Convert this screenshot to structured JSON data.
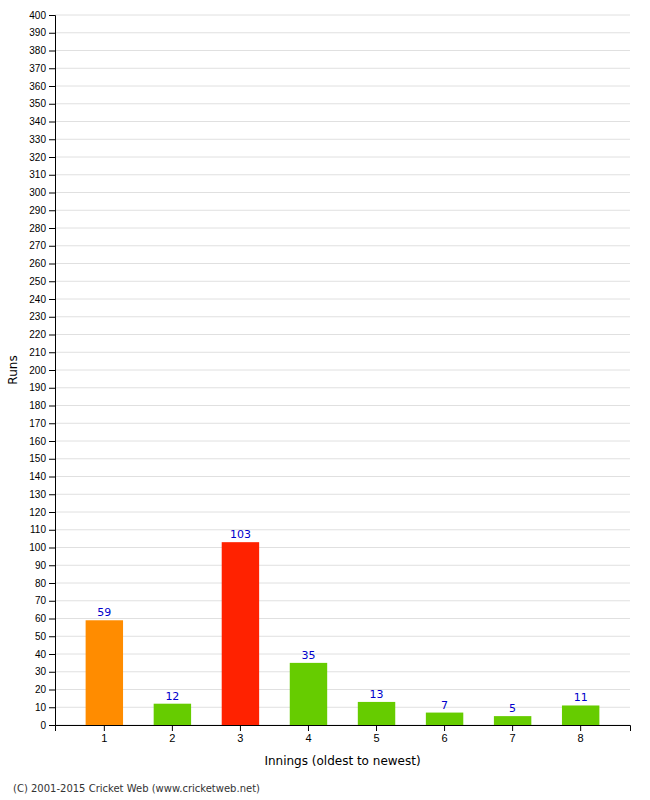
{
  "chart_data": {
    "type": "bar",
    "xlabel": "Innings (oldest to newest)",
    "ylabel": "Runs",
    "categories": [
      "1",
      "2",
      "3",
      "4",
      "5",
      "6",
      "7",
      "8"
    ],
    "values": [
      59,
      12,
      103,
      35,
      13,
      7,
      5,
      11
    ],
    "colors": [
      "#ff8c00",
      "#66cc00",
      "#ff2200",
      "#66cc00",
      "#66cc00",
      "#66cc00",
      "#66cc00",
      "#66cc00"
    ],
    "ylim": [
      0,
      400
    ],
    "yticks": [
      0,
      10,
      20,
      30,
      40,
      50,
      60,
      70,
      80,
      90,
      100,
      110,
      120,
      130,
      140,
      150,
      160,
      170,
      180,
      190,
      200,
      210,
      220,
      230,
      240,
      250,
      260,
      270,
      280,
      290,
      300,
      310,
      320,
      330,
      340,
      350,
      360,
      370,
      380,
      390,
      400
    ],
    "grid": true,
    "data_labels": true,
    "annotations": [
      "(C) 2001-2015 Cricket Web (www.cricketweb.net)"
    ]
  }
}
